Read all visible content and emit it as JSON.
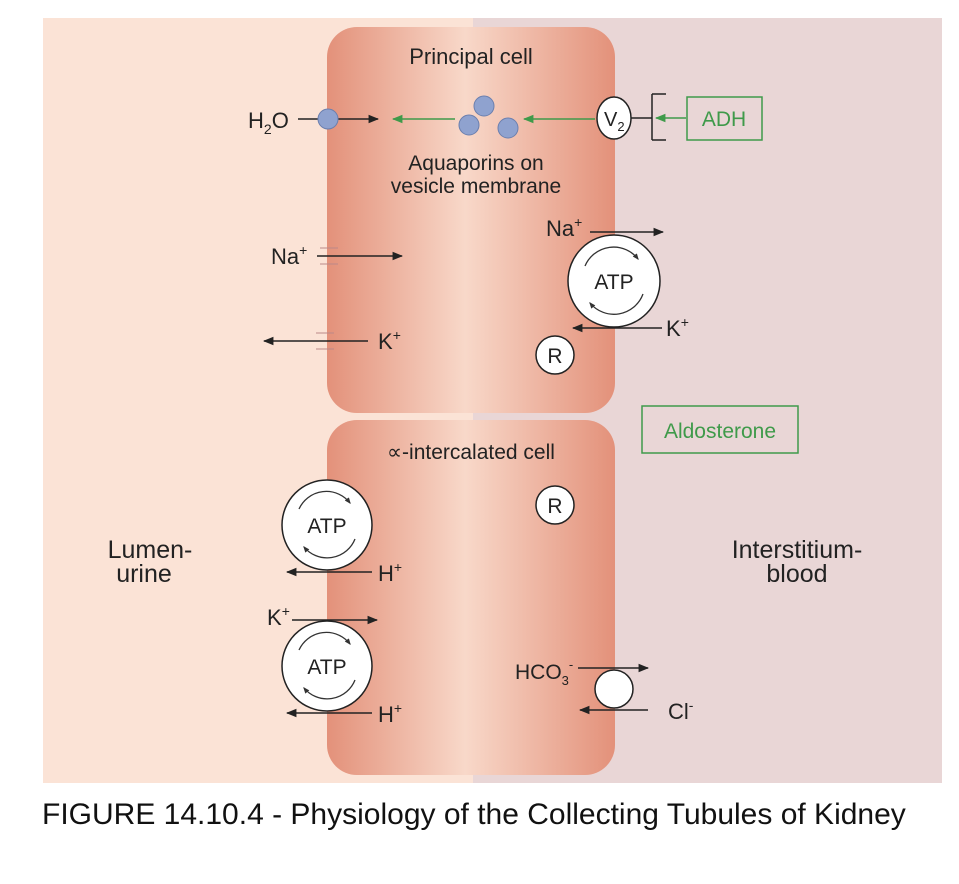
{
  "labels": {
    "principal_cell": "Principal cell",
    "h2o_main": "H",
    "h2o_sub": "2",
    "h2o_tail": "O",
    "v2_main": "V",
    "v2_sub": "2",
    "adh": "ADH",
    "aquaporins_line1": "Aquaporins on",
    "aquaporins_line2": "vesicle membrane",
    "na": "Na",
    "k": "K",
    "plus": "+",
    "atp": "ATP",
    "receptor": "R",
    "aldosterone": "Aldosterone",
    "intercalated_cell": "∝-intercalated cell",
    "lumen_line1": "Lumen-",
    "lumen_line2": "urine",
    "interstitium_line1": "Interstitium-",
    "interstitium_line2": "blood",
    "h": "H",
    "hco3_main": "HCO",
    "hco3_sub": "3",
    "hco3_sup": "-",
    "cl": "Cl",
    "minus": "-"
  },
  "caption": "FIGURE 14.10.4 - Physiology of the Collecting Tubules of Kidney",
  "colors": {
    "lumen_bg": "#fbe3d6",
    "interstitium_bg": "#e9d6d6",
    "cell_edge": "#e3917a",
    "cell_center": "#f8d8c9",
    "hormone_green": "#3f9a4a",
    "aquaporin_blue": "#8fa2cf",
    "text": "#222222"
  }
}
